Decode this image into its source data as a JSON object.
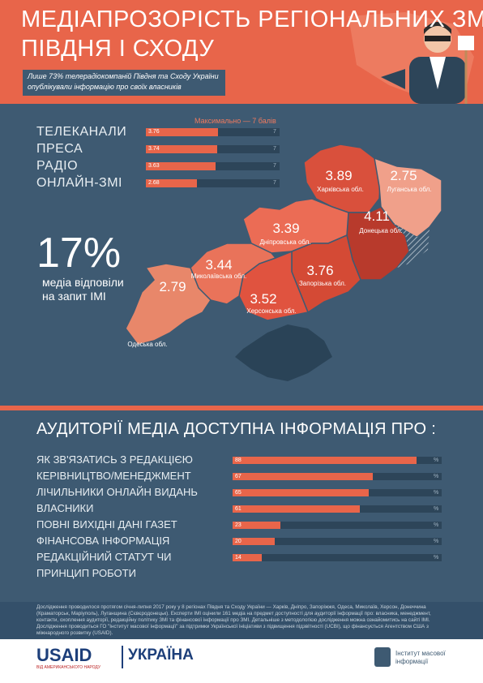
{
  "header": {
    "title_line1": "МЕДІАПРОЗОРІСТЬ РЕГІОНАЛЬНИХ ЗМІ",
    "title_line2": "ПІВДНЯ І СХОДУ",
    "subtitle_line1": "Лише 73% телерадіокомпаній Півдня та Сходу України",
    "subtitle_line2": "опублікували інформацію про своїх власників"
  },
  "media_scores": {
    "max_label": "Максимально — 7 балів",
    "max": 7,
    "categories": [
      "ТЕЛЕКАНАЛИ",
      "ПРЕСА",
      "РАДІО",
      "ОНЛАЙН-ЗМІ"
    ],
    "values": [
      3.76,
      3.74,
      3.63,
      2.68
    ]
  },
  "response": {
    "value": "17%",
    "text_line1": "медіа відповіли",
    "text_line2": "на запит ІМІ"
  },
  "map": {
    "regions": [
      {
        "name": "Харківська обл.",
        "value": 3.89
      },
      {
        "name": "Луганська обл.",
        "value": 2.75
      },
      {
        "name": "Донецька обл.",
        "value": 4.11
      },
      {
        "name": "Дніпровська обл.",
        "value": 3.39
      },
      {
        "name": "Миколаївська обл.",
        "value": 3.44
      },
      {
        "name": "Запорізька обл.",
        "value": 3.76
      },
      {
        "name": "Херсонська обл.",
        "value": 3.52
      },
      {
        "name": "Одеська обл.",
        "value": 2.79
      }
    ]
  },
  "audience": {
    "title": "АУДИТОРІЇ МЕДІА ДОСТУПНА ІНФОРМАЦІЯ ПРО :",
    "unit": "%",
    "categories": [
      "ЯК ЗВ'ЯЗАТИСЬ З РЕДАКЦІЄЮ",
      "КЕРІВНИЦТВО/МЕНЕДЖМЕНТ",
      "ЛІЧИЛЬНИКИ ОНЛАЙН ВИДАНЬ",
      "ВЛАСНИКИ",
      "ПОВНІ ВИХІДНІ ДАНІ ГАЗЕТ",
      "ФІНАНСОВА ІНФОРМАЦІЯ",
      "РЕДАКЦІЙНИЙ СТАТУТ ЧИ ПРИНЦИП РОБОТИ"
    ],
    "values": [
      88,
      67,
      65,
      61,
      23,
      20,
      14
    ]
  },
  "footer": {
    "paragraphs": [
      "Дослідження проводилося протягом січня-липня 2017 року у 8 регіонах Півдня та Сходу України — Харків, Дніпро, Запоріжжя, Одеса, Миколаїв, Херсон, Донеччина (Краматорськ, Маріуполь), Луганщина (Сєвєродонецьк). Експерти ІМІ оцінили 161 медіа на предмет доступності для аудиторії інформації про: власника, менеджмент, контакти, охоплення аудиторії, редакційну політику ЗМІ та фінансової інформації про ЗМІ. Детальніше з методологією дослідження можна ознайомитись на сайті ІМІ.",
      "Дослідження проводиться ГО \"Інститут масової інформації\" за підтримки Української ініціативи з підвищення підзвітності (UCBI), що фінансується Агентством США з міжнародного розвитку (USAID)."
    ]
  },
  "logos": {
    "usaid": "USAID",
    "usaid_tagline": "ВІД АМЕРИКАНСЬКОГО НАРОДУ",
    "ukraine": "УКРАЇНА",
    "imi_line1": "Інститут масової",
    "imi_line2": "інформації"
  }
}
